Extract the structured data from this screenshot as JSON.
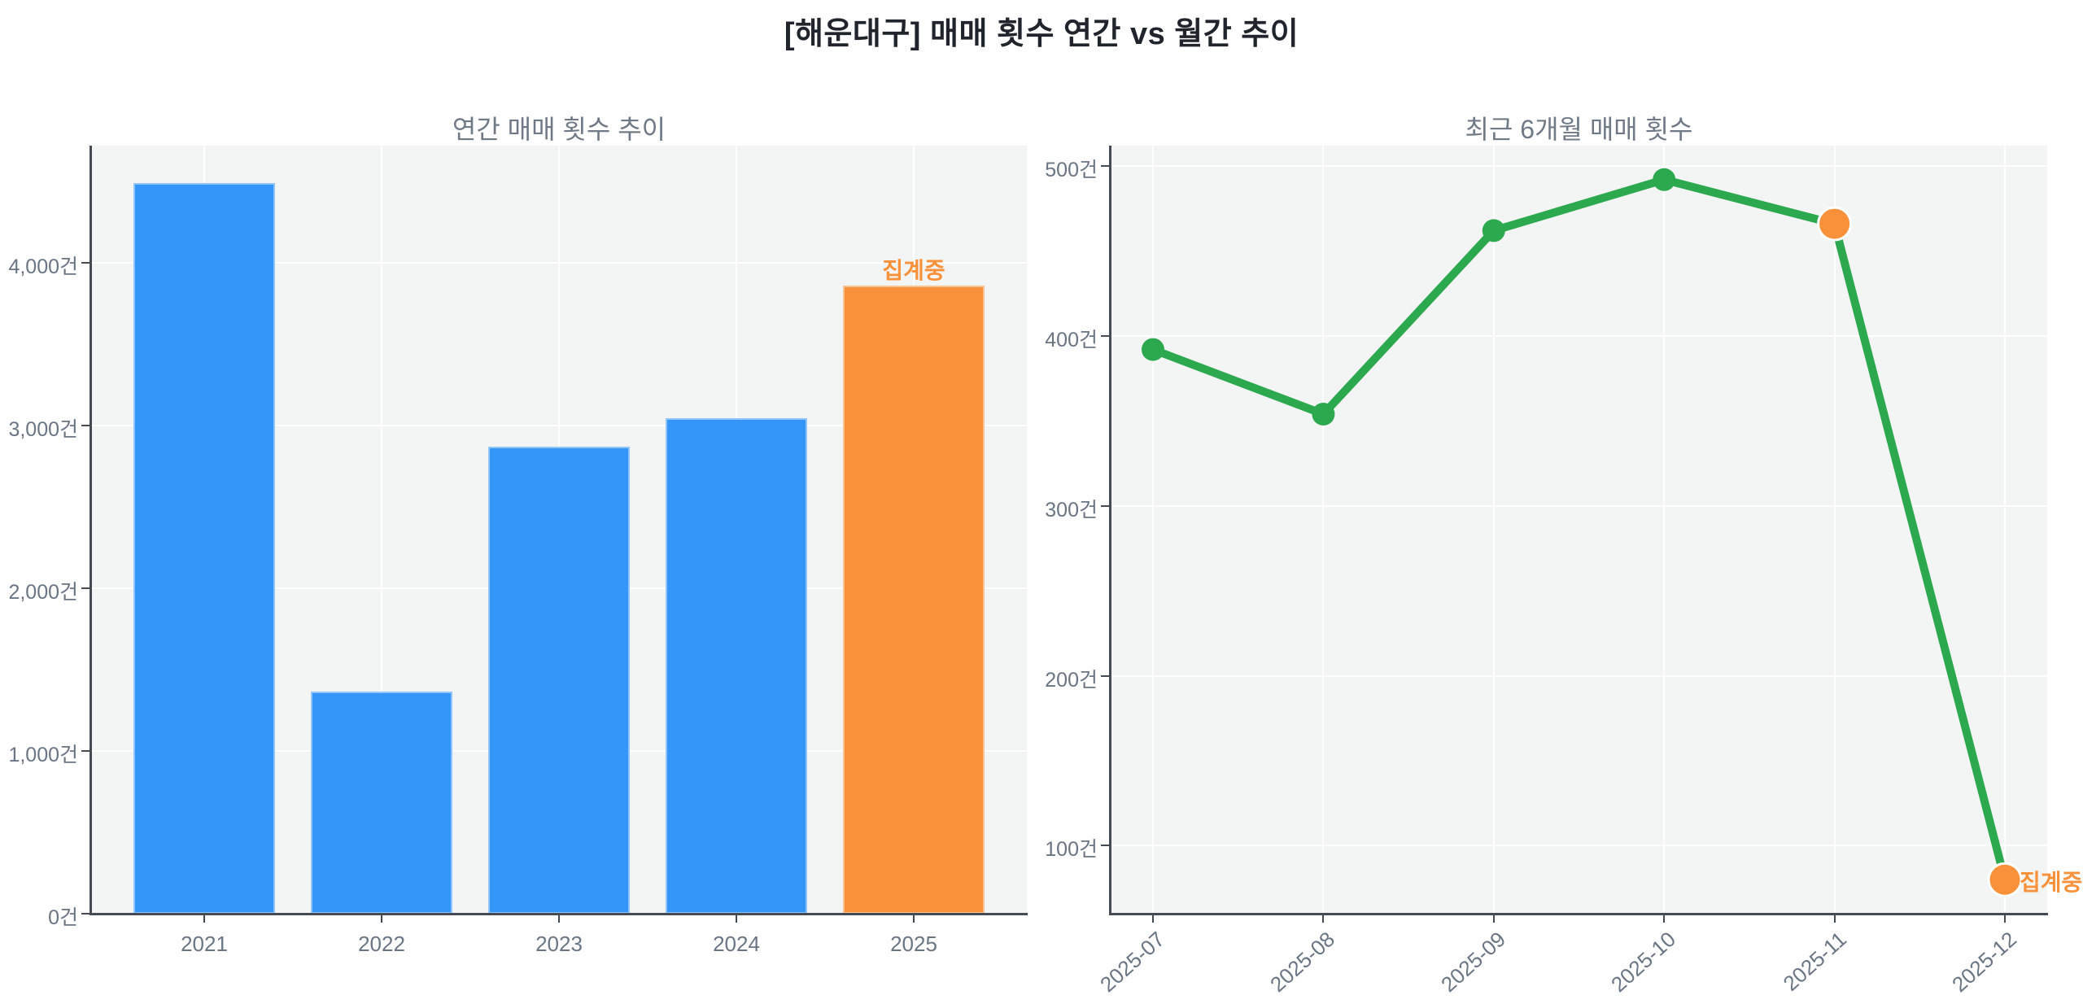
{
  "main_title": "[해운대구] 매매 횟수 연간 vs 월간 추이",
  "colors": {
    "blue": "#3496f8",
    "orange": "#f89139",
    "green": "#2ca94e",
    "plot_background": "#f3f4f4",
    "grid": "#ffffff",
    "spine": "#454b54",
    "tick_label": "#6a7584",
    "subtitle": "#707a87",
    "title": "#20242c"
  },
  "chart_data": [
    {
      "type": "bar",
      "title": "연간 매매 횟수 추이",
      "categories": [
        "2021",
        "2022",
        "2023",
        "2024",
        "2025"
      ],
      "values": [
        4490,
        1365,
        2870,
        3045,
        3860
      ],
      "bar_colors": [
        "#3496f8",
        "#3496f8",
        "#3496f8",
        "#3496f8",
        "#f89139"
      ],
      "unit": "건",
      "ylim": [
        0,
        4720
      ],
      "ytick_values": [
        0,
        1000,
        2000,
        3000,
        4000
      ],
      "ytick_labels": [
        "0건",
        "1,000건",
        "2,000건",
        "3,000건",
        "4,000건"
      ],
      "grid": true,
      "annotation": {
        "text": "집계중",
        "category": "2025",
        "color": "#f89139"
      }
    },
    {
      "type": "line",
      "title": "최근 6개월 매매 횟수",
      "categories": [
        "2025-07",
        "2025-08",
        "2025-09",
        "2025-10",
        "2025-11",
        "2025-12"
      ],
      "values": [
        392,
        354,
        462,
        492,
        466,
        80
      ],
      "unit": "건",
      "ylim": [
        60,
        512
      ],
      "ytick_values": [
        100,
        200,
        300,
        400,
        500
      ],
      "ytick_labels": [
        "100건",
        "200건",
        "300건",
        "400건",
        "500건"
      ],
      "grid": true,
      "line_color": "#2ca94e",
      "marker_color": "#2ca94e",
      "highlighted_categories": [
        "2025-11",
        "2025-12"
      ],
      "highlight_color": "#f89139",
      "annotation": {
        "text": "집계중",
        "category": "2025-12",
        "color": "#f89139"
      }
    }
  ]
}
